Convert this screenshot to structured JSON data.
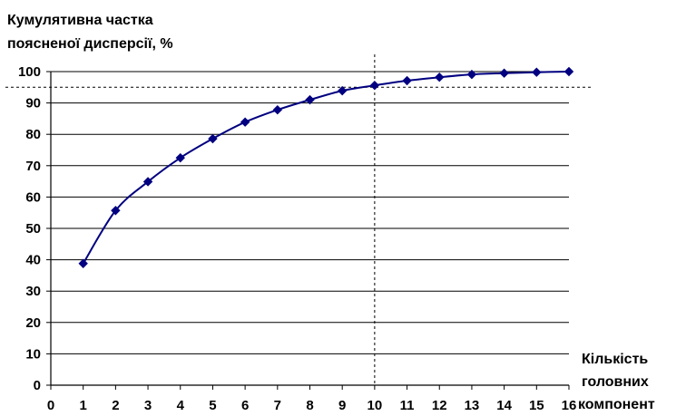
{
  "chart_data": {
    "type": "line",
    "ylabel_lines": [
      "Кумулятивна частка",
      "поясненої дисперсії, %"
    ],
    "xlabel_lines": [
      "Кількість",
      "головних",
      "компонент"
    ],
    "x_ticks": [
      0,
      1,
      2,
      3,
      4,
      5,
      6,
      7,
      8,
      9,
      10,
      11,
      12,
      13,
      14,
      15,
      16
    ],
    "y_ticks": [
      0,
      10,
      20,
      30,
      40,
      50,
      60,
      70,
      80,
      90,
      100
    ],
    "xlim": [
      0,
      16
    ],
    "ylim": [
      0,
      100
    ],
    "grid": "horizontal",
    "series": [
      {
        "x": [
          1,
          2,
          3,
          4,
          5,
          6,
          7,
          8,
          9,
          10,
          11,
          12,
          13,
          14,
          15,
          16
        ],
        "values": [
          38.8,
          55.7,
          64.9,
          72.5,
          78.6,
          83.9,
          87.8,
          91.0,
          93.9,
          95.6,
          97.1,
          98.2,
          99.1,
          99.5,
          99.8,
          100.0
        ],
        "color": "#000080",
        "marker": "diamond"
      }
    ],
    "reference_lines": [
      {
        "orientation": "vertical",
        "value": 10,
        "style": "dashed"
      },
      {
        "orientation": "horizontal",
        "value": 95,
        "style": "dashed"
      }
    ]
  }
}
